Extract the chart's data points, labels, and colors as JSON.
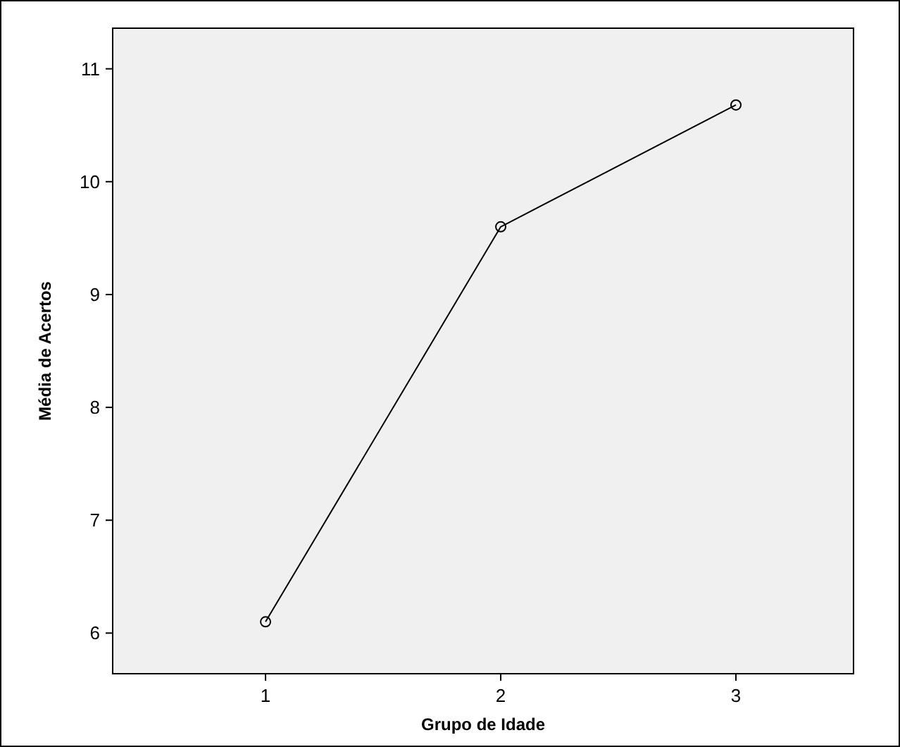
{
  "chart_data": {
    "type": "line",
    "xlabel": "Grupo de Idade",
    "ylabel": "Média de Acertos",
    "x": [
      1,
      2,
      3
    ],
    "series": [
      {
        "color": "#000000",
        "values": [
          6.1,
          9.6,
          10.68
        ]
      }
    ],
    "xlim": [
      0.35,
      3.5
    ],
    "xticks": [
      1,
      2,
      3
    ],
    "ylim": [
      5.64,
      11.36
    ],
    "yticks": [
      6,
      7,
      8,
      9,
      10,
      11
    ],
    "grid": false,
    "marker": "circle",
    "line_style": "solid"
  }
}
